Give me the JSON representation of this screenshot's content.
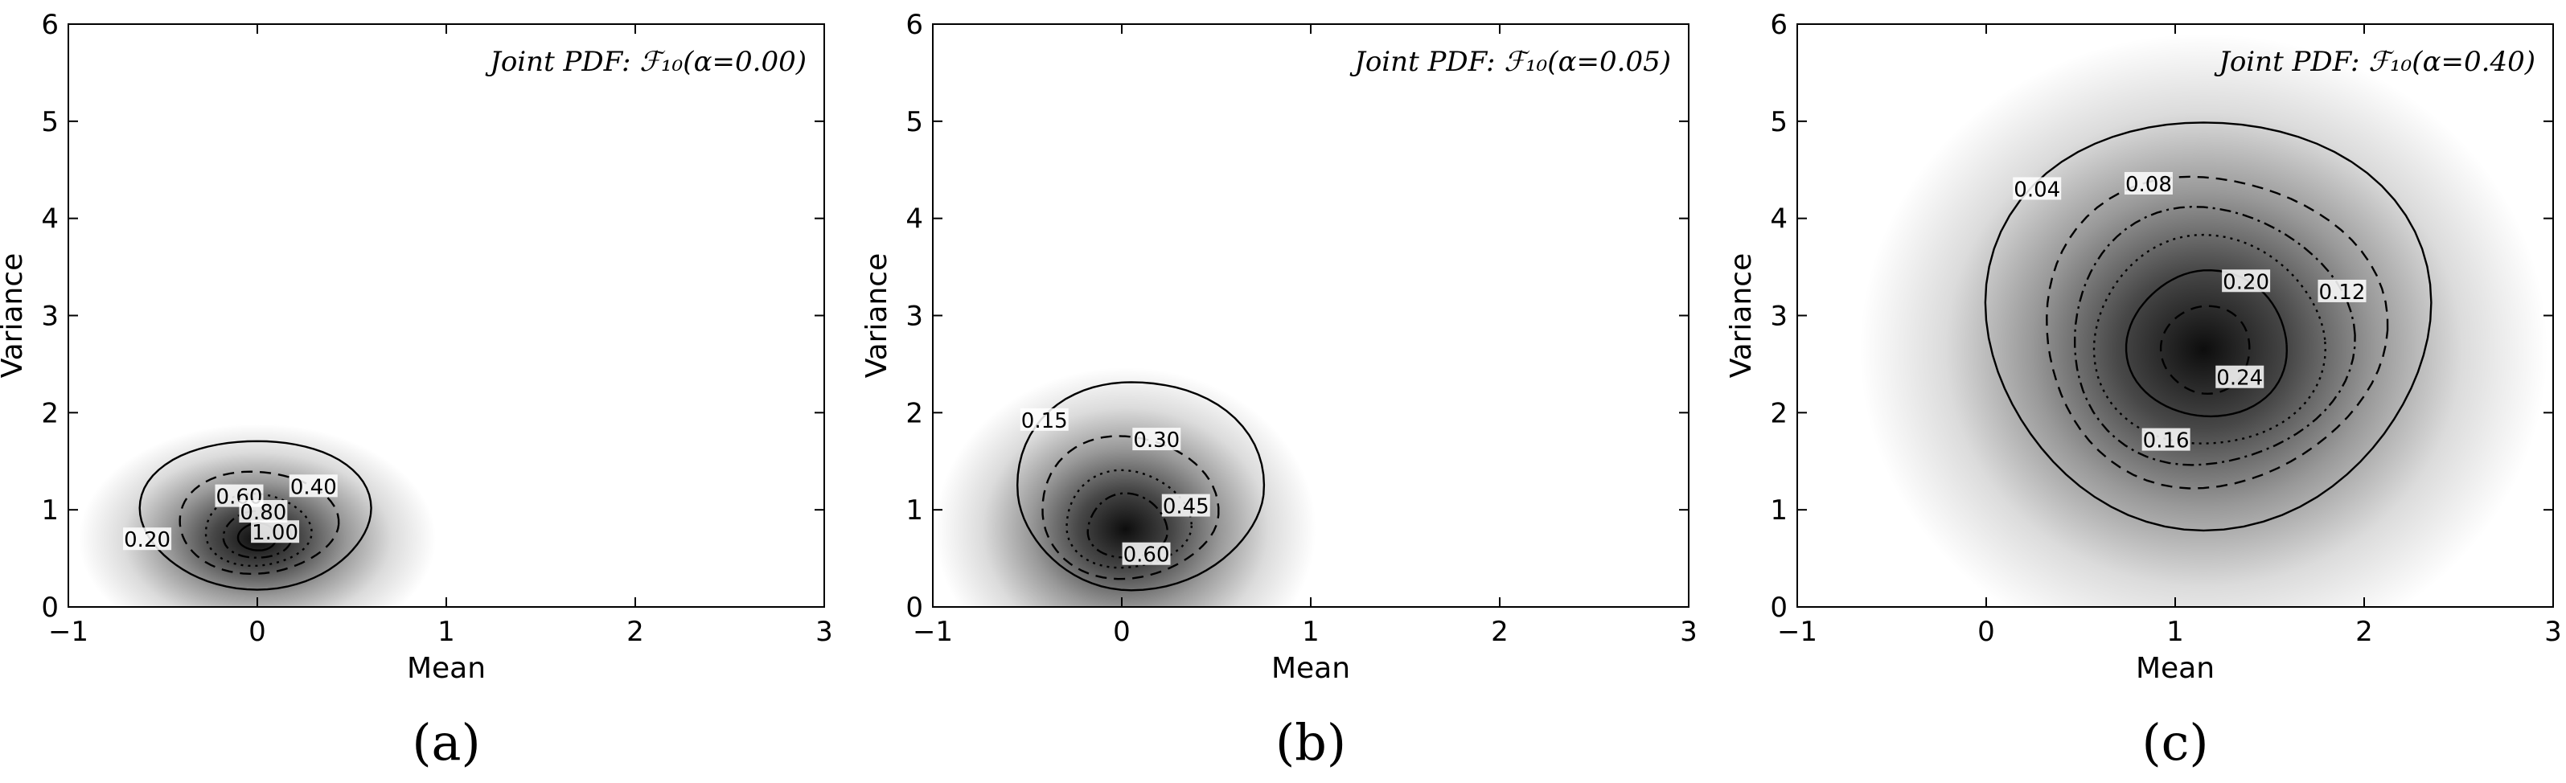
{
  "chart_data": [
    {
      "type": "heatmap",
      "panel_label": "(a)",
      "title": "Joint PDF: ℱ₁₀(α=0.00)",
      "xlabel": "Mean",
      "ylabel": "Variance",
      "xlim": [
        -1,
        3
      ],
      "ylim": [
        0,
        6
      ],
      "xticks": [
        "−1",
        "0",
        "1",
        "2",
        "3"
      ],
      "yticks": [
        "0",
        "1",
        "2",
        "3",
        "4",
        "5",
        "6"
      ],
      "density_peak": {
        "mean": 0.0,
        "variance": 0.7
      },
      "contours": [
        {
          "level": 0.2,
          "label": "0.20",
          "style": "solid",
          "center": [
            0.0,
            0.95
          ],
          "radius_mean": [
            0.62,
            0.6
          ],
          "radius_var": [
            0.75,
            0.78
          ]
        },
        {
          "level": 0.4,
          "label": "0.40",
          "style": "dashed",
          "center": [
            0.0,
            0.85
          ],
          "radius_mean": [
            0.42,
            0.42
          ],
          "radius_var": [
            0.5,
            0.55
          ]
        },
        {
          "level": 0.6,
          "label": "0.60",
          "style": "dotted",
          "center": [
            0.0,
            0.78
          ],
          "radius_mean": [
            0.28,
            0.28
          ],
          "radius_var": [
            0.36,
            0.38
          ]
        },
        {
          "level": 0.8,
          "label": "0.80",
          "style": "dashdot",
          "center": [
            0.0,
            0.74
          ],
          "radius_mean": [
            0.18,
            0.18
          ],
          "radius_var": [
            0.24,
            0.24
          ]
        },
        {
          "level": 1.0,
          "label": "1.00",
          "style": "solid",
          "center": [
            0.0,
            0.72
          ],
          "radius_mean": [
            0.1,
            0.1
          ],
          "radius_var": [
            0.14,
            0.14
          ]
        }
      ]
    },
    {
      "type": "heatmap",
      "panel_label": "(b)",
      "title": "Joint PDF: ℱ₁₀(α=0.05)",
      "xlabel": "Mean",
      "ylabel": "Variance",
      "xlim": [
        -1,
        3
      ],
      "ylim": [
        0,
        6
      ],
      "xticks": [
        "−1",
        "0",
        "1",
        "2",
        "3"
      ],
      "yticks": [
        "0",
        "1",
        "2",
        "3",
        "4",
        "5",
        "6"
      ],
      "density_peak": {
        "mean": 0.02,
        "variance": 0.8
      },
      "contours": [
        {
          "level": 0.15,
          "label": "0.15",
          "style": "solid",
          "center": [
            0.05,
            1.15
          ],
          "radius_mean": [
            0.6,
            0.7
          ],
          "radius_var": [
            0.95,
            1.2
          ]
        },
        {
          "level": 0.3,
          "label": "0.30",
          "style": "dashed",
          "center": [
            0.02,
            0.95
          ],
          "radius_mean": [
            0.45,
            0.48
          ],
          "radius_var": [
            0.65,
            0.82
          ]
        },
        {
          "level": 0.45,
          "label": "0.45",
          "style": "dotted",
          "center": [
            0.02,
            0.85
          ],
          "radius_mean": [
            0.32,
            0.34
          ],
          "radius_var": [
            0.45,
            0.55
          ]
        },
        {
          "level": 0.6,
          "label": "0.60",
          "style": "dashdot",
          "center": [
            0.02,
            0.8
          ],
          "radius_mean": [
            0.2,
            0.22
          ],
          "radius_var": [
            0.3,
            0.36
          ]
        }
      ]
    },
    {
      "type": "heatmap",
      "panel_label": "(c)",
      "title": "Joint PDF: ℱ₁₀(α=0.40)",
      "xlabel": "Mean",
      "ylabel": "Variance",
      "xlim": [
        -1,
        3
      ],
      "ylim": [
        0,
        6
      ],
      "xticks": [
        "−1",
        "0",
        "1",
        "2",
        "3"
      ],
      "yticks": [
        "0",
        "1",
        "2",
        "3",
        "4",
        "5",
        "6"
      ],
      "density_peak": {
        "mean": 1.15,
        "variance": 2.65
      },
      "contours": [
        {
          "level": 0.04,
          "label": "0.04",
          "style": "solid",
          "center": [
            1.15,
            2.95
          ],
          "radius_mean": [
            1.15,
            1.2
          ],
          "radius_var": [
            2.1,
            2.1
          ]
        },
        {
          "level": 0.08,
          "label": "0.08",
          "style": "dashed",
          "center": [
            1.15,
            2.85
          ],
          "radius_mean": [
            0.85,
            0.95
          ],
          "radius_var": [
            1.6,
            1.6
          ]
        },
        {
          "level": 0.12,
          "label": "0.12",
          "style": "dashdot",
          "center": [
            1.15,
            2.8
          ],
          "radius_mean": [
            0.7,
            0.78
          ],
          "radius_var": [
            1.35,
            1.3
          ]
        },
        {
          "level": 0.16,
          "label": "0.16",
          "style": "dotted",
          "center": [
            1.15,
            2.75
          ],
          "radius_mean": [
            0.58,
            0.64
          ],
          "radius_var": [
            1.1,
            1.05
          ]
        },
        {
          "level": 0.2,
          "label": "0.20",
          "style": "solid",
          "center": [
            1.15,
            2.7
          ],
          "radius_mean": [
            0.4,
            0.45
          ],
          "radius_var": [
            0.75,
            0.75
          ]
        },
        {
          "level": 0.24,
          "label": "0.24",
          "style": "dashed",
          "center": [
            1.15,
            2.65
          ],
          "radius_mean": [
            0.22,
            0.25
          ],
          "radius_var": [
            0.45,
            0.45
          ]
        }
      ]
    }
  ]
}
